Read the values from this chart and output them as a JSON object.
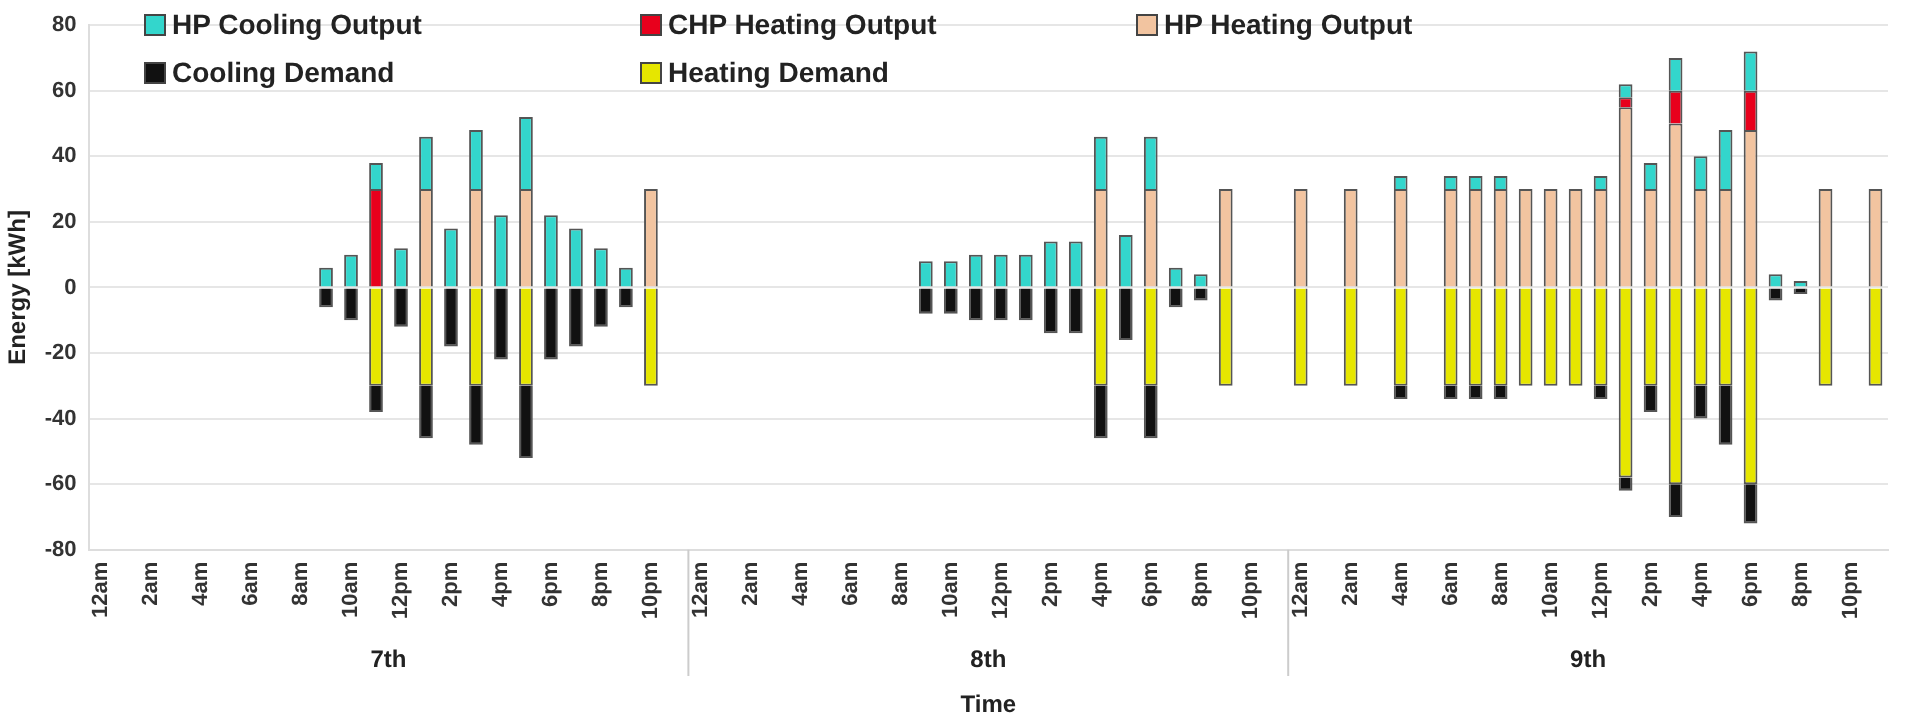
{
  "chart_data": {
    "type": "bar",
    "stacked": true,
    "xlabel": "Time",
    "ylabel": "Energy [kWh]",
    "categories": [
      "12am",
      null,
      "2am",
      null,
      "4am",
      null,
      "6am",
      null,
      "8am",
      null,
      "10am",
      null,
      "12pm",
      null,
      "2pm",
      null,
      "4pm",
      null,
      "6pm",
      null,
      "8pm",
      null,
      "10pm",
      null,
      "12am",
      null,
      "2am",
      null,
      "4am",
      null,
      "6am",
      null,
      "8am",
      null,
      "10am",
      null,
      "12pm",
      null,
      "2pm",
      null,
      "4pm",
      null,
      "6pm",
      null,
      "8pm",
      null,
      "10pm",
      null,
      "12am",
      null,
      "2am",
      null,
      "4am",
      null,
      "6am",
      null,
      "8am",
      null,
      "10am",
      null,
      "12pm",
      null,
      "2pm",
      null,
      "4pm",
      null,
      "6pm",
      null,
      "8pm",
      null,
      "10pm",
      null
    ],
    "series": [
      {
        "name": "HP Heating Output",
        "color": "#f2c4a0",
        "values": [
          null,
          null,
          null,
          null,
          null,
          null,
          null,
          null,
          null,
          null,
          null,
          null,
          null,
          30,
          null,
          30,
          null,
          30,
          null,
          null,
          null,
          null,
          30,
          null,
          null,
          null,
          null,
          null,
          null,
          null,
          null,
          null,
          null,
          null,
          null,
          null,
          null,
          null,
          null,
          null,
          30,
          null,
          30,
          null,
          null,
          30,
          null,
          null,
          30,
          null,
          30,
          null,
          30,
          null,
          30,
          30,
          30,
          30,
          30,
          30,
          30,
          55,
          30,
          50,
          30,
          30,
          48,
          null,
          null,
          30,
          null,
          30
        ]
      },
      {
        "name": "CHP Heating Output",
        "color": "#e8001c",
        "values": [
          null,
          null,
          null,
          null,
          null,
          null,
          null,
          null,
          null,
          null,
          null,
          30,
          null,
          null,
          null,
          null,
          null,
          null,
          null,
          null,
          null,
          null,
          null,
          null,
          null,
          null,
          null,
          null,
          null,
          null,
          null,
          null,
          null,
          null,
          null,
          null,
          null,
          null,
          null,
          null,
          null,
          null,
          null,
          null,
          null,
          null,
          null,
          null,
          null,
          null,
          null,
          null,
          null,
          null,
          null,
          null,
          null,
          null,
          null,
          null,
          null,
          3,
          null,
          10,
          null,
          null,
          12,
          null,
          null,
          null,
          null,
          null
        ]
      },
      {
        "name": "HP Cooling Output",
        "color": "#33d6cc",
        "values": [
          null,
          null,
          null,
          null,
          null,
          null,
          null,
          null,
          null,
          6,
          10,
          8,
          12,
          16,
          18,
          18,
          22,
          22,
          22,
          18,
          12,
          6,
          null,
          null,
          null,
          null,
          null,
          null,
          null,
          null,
          null,
          null,
          null,
          8,
          8,
          10,
          10,
          10,
          14,
          14,
          16,
          16,
          16,
          6,
          4,
          null,
          null,
          null,
          null,
          null,
          null,
          null,
          4,
          null,
          4,
          4,
          4,
          null,
          null,
          null,
          4,
          4,
          8,
          10,
          10,
          18,
          12,
          4,
          2,
          null,
          null,
          null
        ]
      },
      {
        "name": "Heating Demand",
        "color": "#e6e600",
        "values": [
          null,
          null,
          null,
          null,
          null,
          null,
          null,
          null,
          null,
          null,
          null,
          -30,
          null,
          -30,
          null,
          -30,
          null,
          -30,
          null,
          null,
          null,
          null,
          -30,
          null,
          null,
          null,
          null,
          null,
          null,
          null,
          null,
          null,
          null,
          null,
          null,
          null,
          null,
          null,
          null,
          null,
          -30,
          null,
          -30,
          null,
          null,
          -30,
          null,
          null,
          -30,
          null,
          -30,
          null,
          -30,
          null,
          -30,
          -30,
          -30,
          -30,
          -30,
          -30,
          -30,
          -58,
          -30,
          -60,
          -30,
          -30,
          -60,
          null,
          null,
          -30,
          null,
          -30
        ]
      },
      {
        "name": "Cooling Demand",
        "color": "#111111",
        "values": [
          null,
          null,
          null,
          null,
          null,
          null,
          null,
          null,
          null,
          -6,
          -10,
          -8,
          -12,
          -16,
          -18,
          -18,
          -22,
          -22,
          -22,
          -18,
          -12,
          -6,
          null,
          null,
          null,
          null,
          null,
          null,
          null,
          null,
          null,
          null,
          null,
          -8,
          -8,
          -10,
          -10,
          -10,
          -14,
          -14,
          -16,
          -16,
          -16,
          -6,
          -4,
          null,
          null,
          null,
          null,
          null,
          null,
          null,
          -4,
          null,
          -4,
          -4,
          -4,
          null,
          null,
          null,
          -4,
          -4,
          -8,
          -10,
          -10,
          -18,
          -12,
          -4,
          -2,
          null,
          null,
          null
        ]
      }
    ],
    "ylim": [
      -80,
      80
    ],
    "yticks": [
      -80,
      -60,
      -40,
      -20,
      0,
      20,
      40,
      60,
      80
    ],
    "grid": "y",
    "legend": "top",
    "annotations": [
      "7th",
      "8th",
      "9th"
    ]
  }
}
